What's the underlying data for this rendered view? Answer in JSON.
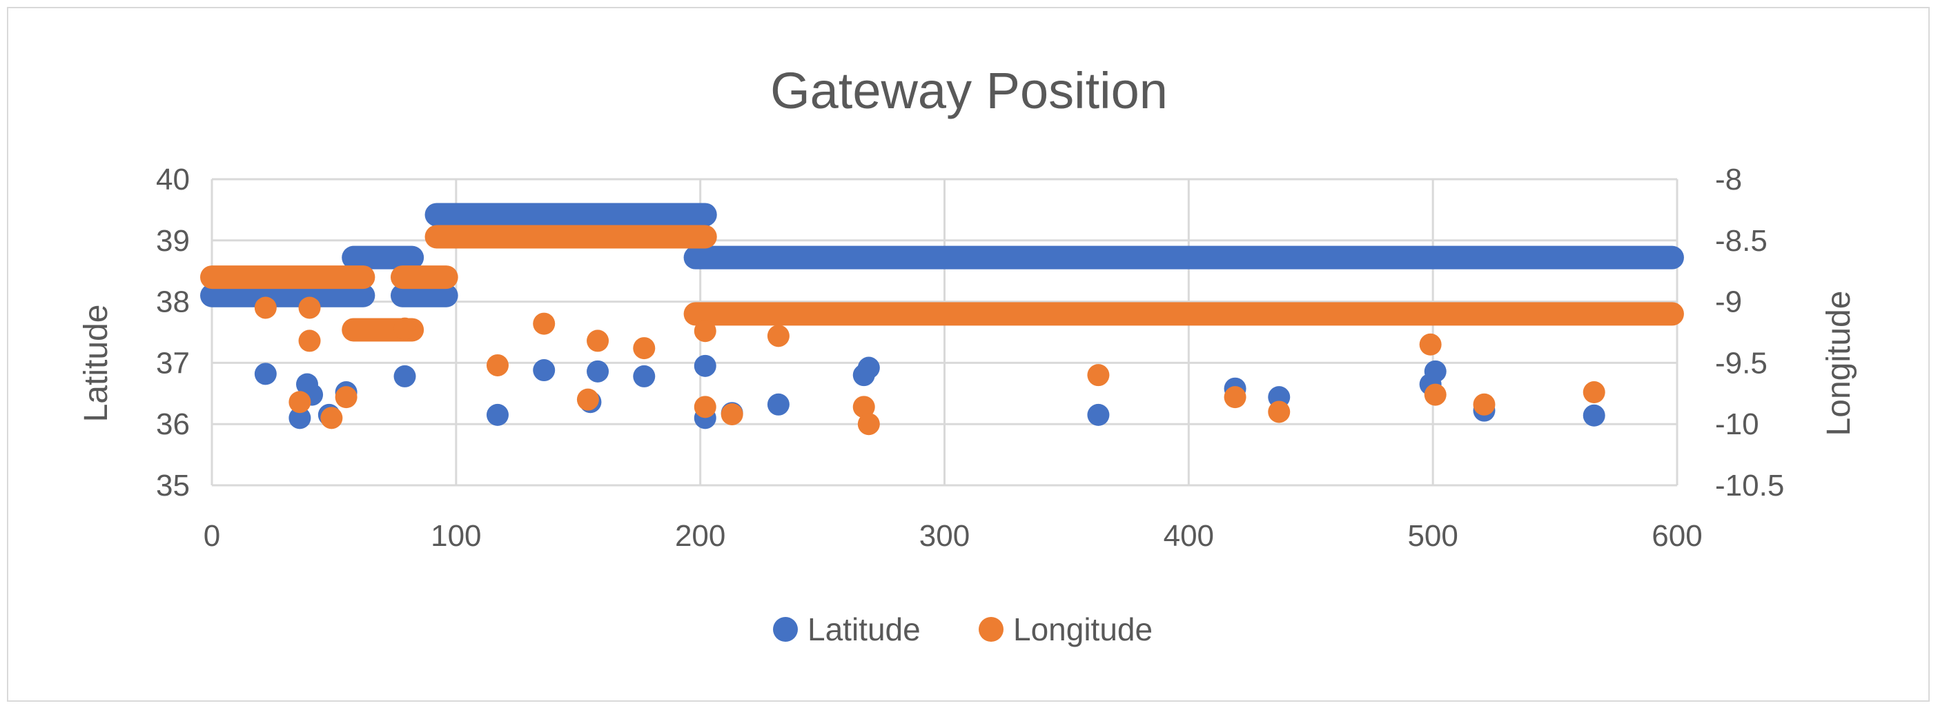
{
  "colors": {
    "latitude": "#4472C4",
    "longitude": "#ED7D31",
    "grid": "#d9d9d9",
    "text": "#595959"
  },
  "chart_data": {
    "type": "scatter",
    "title": "Gateway Position",
    "xlabel": "",
    "ylabel": "Latitude",
    "y2label": "Longitude",
    "xlim": [
      0,
      600
    ],
    "ylim": [
      35,
      40
    ],
    "y2lim": [
      -10.5,
      -8
    ],
    "xticks": [
      "0",
      "100",
      "200",
      "300",
      "400",
      "500",
      "600"
    ],
    "yticks": [
      "35",
      "36",
      "37",
      "38",
      "39",
      "40"
    ],
    "y2ticks": [
      "-10.5",
      "-10",
      "-9.5",
      "-9",
      "-8.5",
      "-8"
    ],
    "grid": true,
    "legend_position": "bottom",
    "series": [
      {
        "name": "Latitude",
        "axis": "left",
        "segments": [
          {
            "x_start": 0,
            "x_end": 62,
            "y": 38.1
          },
          {
            "x_start": 58,
            "x_end": 82,
            "y": 38.72
          },
          {
            "x_start": 78,
            "x_end": 96,
            "y": 38.1
          },
          {
            "x_start": 92,
            "x_end": 202,
            "y": 39.42
          },
          {
            "x_start": 198,
            "x_end": 598,
            "y": 38.72
          }
        ],
        "points": [
          [
            22,
            36.82
          ],
          [
            36,
            36.1
          ],
          [
            39,
            36.65
          ],
          [
            41,
            36.48
          ],
          [
            48,
            36.15
          ],
          [
            55,
            36.52
          ],
          [
            79,
            36.78
          ],
          [
            117,
            36.15
          ],
          [
            136,
            36.88
          ],
          [
            155,
            36.36
          ],
          [
            158,
            36.86
          ],
          [
            177,
            36.78
          ],
          [
            202,
            36.95
          ],
          [
            202,
            36.1
          ],
          [
            213,
            36.18
          ],
          [
            232,
            36.32
          ],
          [
            267,
            36.8
          ],
          [
            269,
            36.92
          ],
          [
            363,
            36.15
          ],
          [
            419,
            36.58
          ],
          [
            437,
            36.44
          ],
          [
            499,
            36.65
          ],
          [
            501,
            36.86
          ],
          [
            521,
            36.22
          ],
          [
            566,
            36.14
          ]
        ]
      },
      {
        "name": "Longitude",
        "axis": "right",
        "segments": [
          {
            "x_start": 0,
            "x_end": 62,
            "y": -8.8
          },
          {
            "x_start": 58,
            "x_end": 82,
            "y": -9.23
          },
          {
            "x_start": 78,
            "x_end": 96,
            "y": -8.8
          },
          {
            "x_start": 92,
            "x_end": 202,
            "y": -8.47
          },
          {
            "x_start": 198,
            "x_end": 598,
            "y": -9.1
          }
        ],
        "points": [
          [
            22,
            -9.05
          ],
          [
            36,
            -9.82
          ],
          [
            40,
            -9.05
          ],
          [
            40,
            -9.32
          ],
          [
            49,
            -9.95
          ],
          [
            55,
            -9.78
          ],
          [
            79,
            -9.22
          ],
          [
            117,
            -9.52
          ],
          [
            136,
            -9.18
          ],
          [
            154,
            -9.8
          ],
          [
            158,
            -9.32
          ],
          [
            177,
            -9.38
          ],
          [
            202,
            -9.24
          ],
          [
            202,
            -9.86
          ],
          [
            213,
            -9.92
          ],
          [
            232,
            -9.28
          ],
          [
            267,
            -9.86
          ],
          [
            269,
            -10.0
          ],
          [
            363,
            -9.6
          ],
          [
            419,
            -9.78
          ],
          [
            437,
            -9.9
          ],
          [
            499,
            -9.35
          ],
          [
            501,
            -9.76
          ],
          [
            521,
            -9.84
          ],
          [
            566,
            -9.74
          ]
        ]
      }
    ]
  }
}
